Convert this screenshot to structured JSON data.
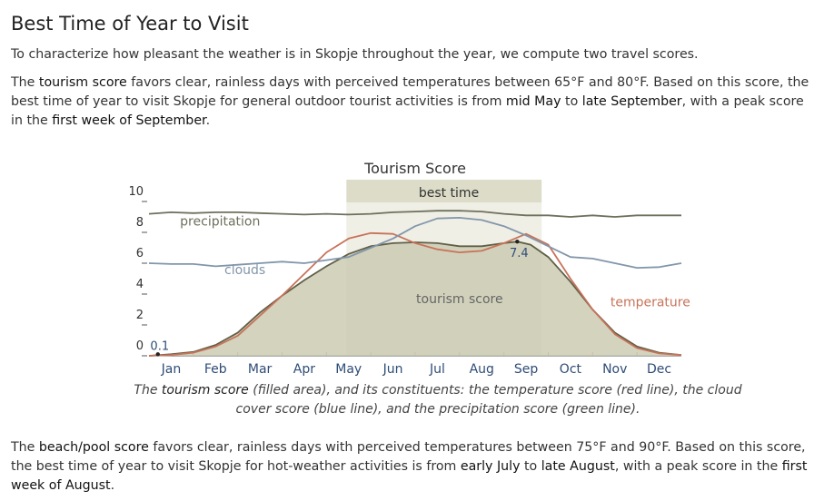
{
  "heading": "Best Time of Year to Visit",
  "intro": "To characterize how pleasant the weather is in Skopje throughout the year, we compute two travel scores.",
  "tourism_paragraph": {
    "p1": "The ",
    "term": "tourism score",
    "p2": " favors clear, rainless days with perceived temperatures between 65°F and 80°F. Based on this score, the best time of year to visit Skopje for general outdoor tourist activities is from ",
    "start": "mid May",
    "p3": " to ",
    "end": "late September",
    "p4": ", with a peak score in the ",
    "peak": "first week of September",
    "p5": "."
  },
  "caption": {
    "c1": "The ",
    "term": "tourism score",
    "c2": " (filled area), and its constituents: the temperature score (red line), the cloud cover score (blue line), and the precipitation score (green line)."
  },
  "beach_paragraph": {
    "p1": "The ",
    "term": "beach/pool score",
    "p2": " favors clear, rainless days with perceived temperatures between 75°F and 90°F. Based on this score, the best time of year to visit Skopje for hot-weather activities is from ",
    "start": "early July",
    "p3": " to ",
    "end": "late August",
    "p4": ", with a peak score in the ",
    "peak": "first week of August",
    "p5": "."
  },
  "chart_data": {
    "type": "area",
    "title": "Tourism Score",
    "best_time_label": "best time",
    "best_time_range": [
      4.45,
      8.85
    ],
    "x_range": [
      0,
      12
    ],
    "ylim": [
      0,
      10
    ],
    "y_ticks": [
      0,
      2,
      4,
      6,
      8,
      10
    ],
    "month_labels": [
      "Jan",
      "Feb",
      "Mar",
      "Apr",
      "May",
      "Jun",
      "Jul",
      "Aug",
      "Sep",
      "Oct",
      "Nov",
      "Dec"
    ],
    "annotations": [
      {
        "text": "0.1",
        "x": 0.2,
        "y": 0.1
      },
      {
        "text": "7.4",
        "x": 8.3,
        "y": 7.4
      }
    ],
    "series": [
      {
        "name": "tourism score",
        "style": "area",
        "fill": "#cbcbb3",
        "stroke": "#606048",
        "label_at": [
          7.0,
          3.4
        ],
        "points": [
          [
            0,
            0
          ],
          [
            0.5,
            0.1
          ],
          [
            1,
            0.25
          ],
          [
            1.5,
            0.7
          ],
          [
            2,
            1.5
          ],
          [
            2.5,
            2.8
          ],
          [
            3,
            3.9
          ],
          [
            3.5,
            4.9
          ],
          [
            4,
            5.8
          ],
          [
            4.5,
            6.6
          ],
          [
            5,
            7.1
          ],
          [
            5.5,
            7.3
          ],
          [
            6,
            7.35
          ],
          [
            6.5,
            7.3
          ],
          [
            7,
            7.1
          ],
          [
            7.5,
            7.1
          ],
          [
            8,
            7.3
          ],
          [
            8.3,
            7.4
          ],
          [
            8.6,
            7.2
          ],
          [
            9,
            6.4
          ],
          [
            9.5,
            4.8
          ],
          [
            10,
            3.0
          ],
          [
            10.5,
            1.5
          ],
          [
            11,
            0.6
          ],
          [
            11.5,
            0.2
          ],
          [
            12,
            0.05
          ]
        ]
      },
      {
        "name": "temperature",
        "style": "line",
        "stroke": "#c8735a",
        "label_at": [
          10.4,
          3.2
        ],
        "points": [
          [
            0,
            0
          ],
          [
            0.5,
            0.05
          ],
          [
            1,
            0.2
          ],
          [
            1.5,
            0.6
          ],
          [
            2,
            1.3
          ],
          [
            2.5,
            2.6
          ],
          [
            3,
            3.9
          ],
          [
            3.5,
            5.3
          ],
          [
            4,
            6.7
          ],
          [
            4.5,
            7.6
          ],
          [
            5,
            7.95
          ],
          [
            5.5,
            7.9
          ],
          [
            6,
            7.3
          ],
          [
            6.5,
            6.9
          ],
          [
            7,
            6.7
          ],
          [
            7.5,
            6.8
          ],
          [
            8,
            7.3
          ],
          [
            8.5,
            7.9
          ],
          [
            9,
            7.2
          ],
          [
            9.5,
            5.0
          ],
          [
            10,
            3.0
          ],
          [
            10.5,
            1.4
          ],
          [
            11,
            0.5
          ],
          [
            11.5,
            0.15
          ],
          [
            12,
            0.05
          ]
        ]
      },
      {
        "name": "clouds",
        "style": "line",
        "stroke": "#8296aa",
        "label_at": [
          1.7,
          5.3
        ],
        "points": [
          [
            0,
            6.0
          ],
          [
            0.5,
            5.95
          ],
          [
            1,
            5.95
          ],
          [
            1.5,
            5.8
          ],
          [
            2,
            5.9
          ],
          [
            2.5,
            6.0
          ],
          [
            3,
            6.1
          ],
          [
            3.5,
            6.0
          ],
          [
            4,
            6.2
          ],
          [
            4.5,
            6.4
          ],
          [
            5,
            7.0
          ],
          [
            5.5,
            7.6
          ],
          [
            6,
            8.4
          ],
          [
            6.5,
            8.9
          ],
          [
            7,
            8.95
          ],
          [
            7.5,
            8.8
          ],
          [
            8,
            8.4
          ],
          [
            8.5,
            7.8
          ],
          [
            9,
            7.1
          ],
          [
            9.5,
            6.4
          ],
          [
            10,
            6.3
          ],
          [
            10.5,
            6.0
          ],
          [
            11,
            5.7
          ],
          [
            11.5,
            5.75
          ],
          [
            12,
            6.0
          ]
        ]
      },
      {
        "name": "precipitation",
        "style": "line",
        "stroke": "#6e705c",
        "label_at": [
          0.7,
          8.45
        ],
        "points": [
          [
            0,
            9.2
          ],
          [
            0.5,
            9.3
          ],
          [
            1,
            9.25
          ],
          [
            1.5,
            9.3
          ],
          [
            2,
            9.3
          ],
          [
            2.5,
            9.25
          ],
          [
            3,
            9.2
          ],
          [
            3.5,
            9.15
          ],
          [
            4,
            9.2
          ],
          [
            4.5,
            9.15
          ],
          [
            5,
            9.2
          ],
          [
            5.5,
            9.3
          ],
          [
            6,
            9.35
          ],
          [
            6.5,
            9.4
          ],
          [
            7,
            9.4
          ],
          [
            7.5,
            9.35
          ],
          [
            8,
            9.2
          ],
          [
            8.5,
            9.1
          ],
          [
            9,
            9.1
          ],
          [
            9.5,
            9.0
          ],
          [
            10,
            9.1
          ],
          [
            10.5,
            9.0
          ],
          [
            11,
            9.1
          ],
          [
            11.5,
            9.1
          ],
          [
            12,
            9.1
          ]
        ]
      }
    ]
  }
}
